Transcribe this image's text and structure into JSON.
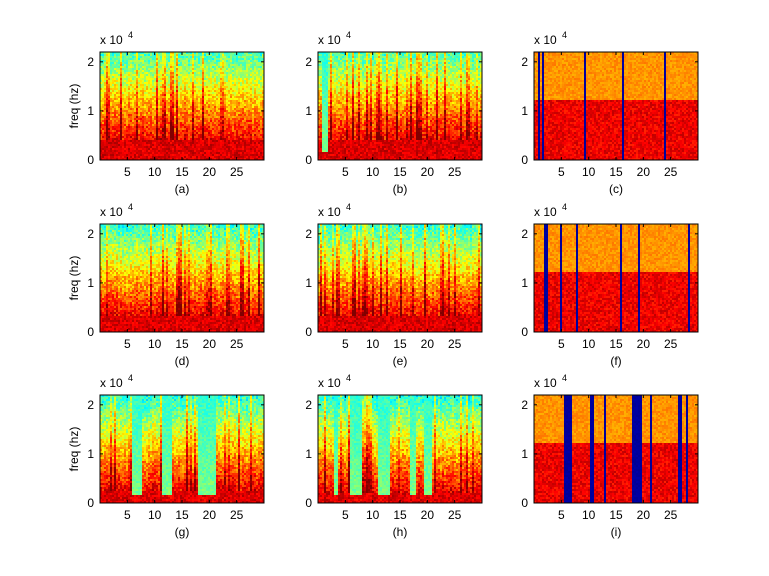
{
  "chart_data": {
    "type": "heatmap",
    "layout": {
      "rows": 3,
      "cols": 3
    },
    "shared": {
      "x_ticks": [
        5,
        10,
        15,
        20,
        25
      ],
      "xlim": [
        0,
        30
      ],
      "y_ticks": [
        0,
        1,
        2
      ],
      "ylim": [
        0,
        2.2
      ],
      "y_multiplier_label": "x 10",
      "y_multiplier_exp": "4",
      "ylabel": "freq (hz)",
      "colormap": "jet"
    },
    "panels": [
      {
        "label": "(a)",
        "kind": "speech",
        "has_ylabel": true,
        "seed": 11,
        "split": 0.18,
        "quiet_segments": [],
        "wideband_bursts": []
      },
      {
        "label": "(b)",
        "kind": "speech",
        "has_ylabel": false,
        "seed": 23,
        "split": 0.18,
        "quiet_segments": [
          [
            0.8,
            1.8
          ]
        ],
        "wideband_bursts": []
      },
      {
        "label": "(c)",
        "kind": "noise",
        "has_ylabel": false,
        "seed": 37,
        "split": 0.55,
        "quiet_segments": [],
        "gaps": [
          [
            0.2,
            0.5
          ],
          [
            0.8,
            1.1
          ],
          [
            1.6,
            2.0
          ],
          [
            9.3,
            9.6
          ],
          [
            16.1,
            16.3
          ],
          [
            20.4,
            20.6
          ],
          [
            23.8,
            24.0
          ]
        ]
      },
      {
        "label": "(d)",
        "kind": "speech",
        "has_ylabel": true,
        "seed": 41,
        "split": 0.14,
        "quiet_segments": [],
        "wideband_bursts": []
      },
      {
        "label": "(e)",
        "kind": "speech",
        "has_ylabel": false,
        "seed": 53,
        "split": 0.14,
        "quiet_segments": [],
        "wideband_bursts": []
      },
      {
        "label": "(f)",
        "kind": "noise",
        "has_ylabel": false,
        "seed": 67,
        "split": 0.55,
        "quiet_segments": [],
        "gaps": [
          [
            0.3,
            0.5
          ],
          [
            2.0,
            2.6
          ],
          [
            4.7,
            5.3
          ],
          [
            7.6,
            8.1
          ],
          [
            12.3,
            12.6
          ],
          [
            15.8,
            16.1
          ],
          [
            19.0,
            19.4
          ],
          [
            25.8,
            26.1
          ],
          [
            28.3,
            28.7
          ]
        ]
      },
      {
        "label": "(g)",
        "kind": "speech",
        "has_ylabel": true,
        "seed": 71,
        "split": 0.12,
        "quiet_segments": [
          [
            5.8,
            7.6
          ],
          [
            11.5,
            13.2
          ],
          [
            18.0,
            21.3
          ]
        ],
        "wideband_bursts": []
      },
      {
        "label": "(h)",
        "kind": "speech",
        "has_ylabel": false,
        "seed": 83,
        "split": 0.1,
        "quiet_segments": [
          [
            2.8,
            3.6
          ],
          [
            5.8,
            7.9
          ],
          [
            11.0,
            13.2
          ],
          [
            16.8,
            17.8
          ],
          [
            19.5,
            20.8
          ]
        ],
        "wideband_bursts": []
      },
      {
        "label": "(i)",
        "kind": "noise",
        "has_ylabel": false,
        "seed": 97,
        "split": 0.55,
        "quiet_segments": [],
        "gaps": [
          [
            5.5,
            7.0
          ],
          [
            10.3,
            11.0
          ],
          [
            12.7,
            13.2
          ],
          [
            18.0,
            19.7
          ],
          [
            21.3,
            21.5
          ],
          [
            26.4,
            27.0
          ],
          [
            27.9,
            28.2
          ]
        ]
      }
    ]
  }
}
